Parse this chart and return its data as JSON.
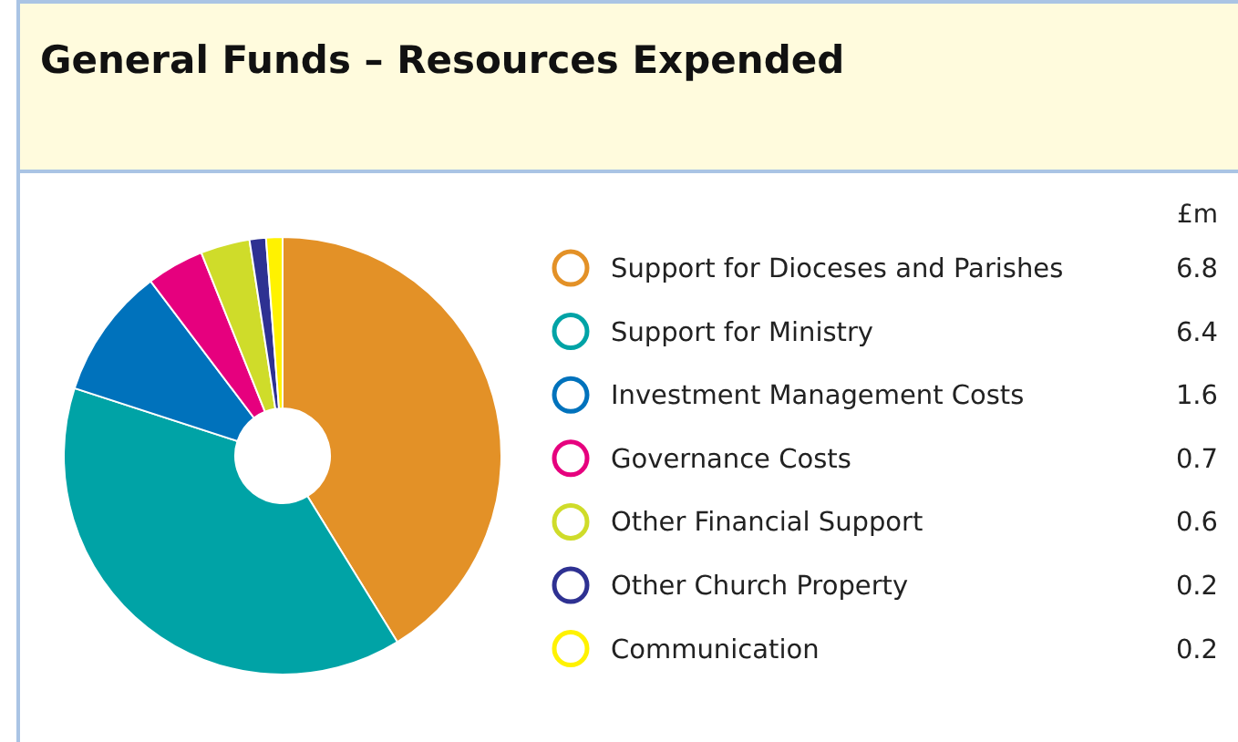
{
  "chart_data": {
    "type": "donut",
    "title": "General Funds – Resources Expended",
    "categories": [
      "Support for Dioceses and Parishes",
      "Support for Ministry",
      "Investment Management Costs",
      "Governance Costs",
      "Other Financial Support",
      "Other Church Property",
      "Communication"
    ],
    "values": [
      6.8,
      6.4,
      1.6,
      0.7,
      0.6,
      0.2,
      0.2
    ],
    "colors": [
      "#e39127",
      "#00a3a6",
      "#0072bc",
      "#e6007e",
      "#cfdc2a",
      "#2e3192",
      "#fff200"
    ],
    "legend_title": "£m",
    "legend": "right",
    "data_labels": true
  }
}
